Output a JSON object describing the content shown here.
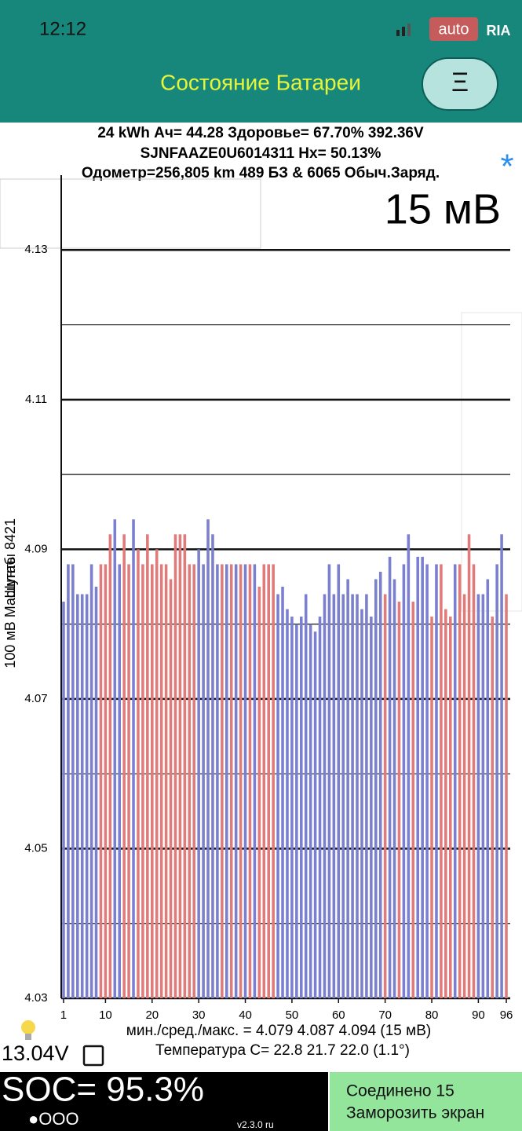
{
  "status_bar": {
    "time": "12:12",
    "logo_left": "auto",
    "logo_right": "RIA"
  },
  "header": {
    "title": "Состояние Батареи",
    "menu": "Ξ"
  },
  "info": {
    "line1": "24 kWh  Ач= 44.28  Здоровье= 67.70%   392.36V",
    "line2": "SJNFAAZE0U6014311   Hx= 50.13%",
    "line3": "Одометр=256,805 km 489 БЗ & 6065 Обыч.Заряд.",
    "star": "*",
    "scale": "15 мВ"
  },
  "chart_data": {
    "type": "bar",
    "y_label": "100 мВ Масштаб",
    "y_label2": "Шунты 8421",
    "x": [
      1,
      2,
      3,
      4,
      5,
      6,
      7,
      8,
      9,
      10,
      11,
      12,
      13,
      14,
      15,
      16,
      17,
      18,
      19,
      20,
      21,
      22,
      23,
      24,
      25,
      26,
      27,
      28,
      29,
      30,
      31,
      32,
      33,
      34,
      35,
      36,
      37,
      38,
      39,
      40,
      41,
      42,
      43,
      44,
      45,
      46,
      47,
      48,
      49,
      50,
      51,
      52,
      53,
      54,
      55,
      56,
      57,
      58,
      59,
      60,
      61,
      62,
      63,
      64,
      65,
      66,
      67,
      68,
      69,
      70,
      71,
      72,
      73,
      74,
      75,
      76,
      77,
      78,
      79,
      80,
      81,
      82,
      83,
      84,
      85,
      86,
      87,
      88,
      89,
      90,
      91,
      92,
      93,
      94,
      95,
      96
    ],
    "values": [
      4.083,
      4.088,
      4.088,
      4.084,
      4.084,
      4.084,
      4.088,
      4.085,
      4.088,
      4.088,
      4.092,
      4.094,
      4.088,
      4.092,
      4.088,
      4.094,
      4.09,
      4.088,
      4.092,
      4.088,
      4.09,
      4.088,
      4.088,
      4.086,
      4.092,
      4.092,
      4.092,
      4.088,
      4.088,
      4.09,
      4.088,
      4.094,
      4.092,
      4.088,
      4.088,
      4.088,
      4.088,
      4.088,
      4.088,
      4.088,
      4.088,
      4.088,
      4.085,
      4.088,
      4.088,
      4.088,
      4.084,
      4.085,
      4.082,
      4.081,
      4.08,
      4.081,
      4.084,
      4.08,
      4.079,
      4.081,
      4.084,
      4.088,
      4.084,
      4.088,
      4.084,
      4.086,
      4.084,
      4.084,
      4.082,
      4.084,
      4.081,
      4.086,
      4.087,
      4.084,
      4.089,
      4.086,
      4.083,
      4.088,
      4.092,
      4.083,
      4.089,
      4.089,
      4.088,
      4.081,
      4.088,
      4.088,
      4.082,
      4.081,
      4.088,
      4.088,
      4.084,
      4.092,
      4.088,
      4.084,
      4.084,
      4.086,
      4.081,
      4.088,
      4.092,
      4.084
    ],
    "colors": [
      "#7b7fcf",
      "#7b7fcf",
      "#7b7fcf",
      "#7b7fcf",
      "#7b7fcf",
      "#7b7fcf",
      "#7b7fcf",
      "#7b7fcf",
      "#e07b7b",
      "#e07b7b",
      "#e07b7b",
      "#7b7fcf",
      "#7b7fcf",
      "#e07b7b",
      "#e07b7b",
      "#7b7fcf",
      "#e07b7b",
      "#e07b7b",
      "#e07b7b",
      "#e07b7b",
      "#e07b7b",
      "#e07b7b",
      "#e07b7b",
      "#e07b7b",
      "#e07b7b",
      "#e07b7b",
      "#e07b7b",
      "#e07b7b",
      "#e07b7b",
      "#7b7fcf",
      "#7b7fcf",
      "#7b7fcf",
      "#7b7fcf",
      "#7b7fcf",
      "#e07b7b",
      "#7b7fcf",
      "#e07b7b",
      "#7b7fcf",
      "#e07b7b",
      "#7b7fcf",
      "#e07b7b",
      "#7b7fcf",
      "#e07b7b",
      "#e07b7b",
      "#e07b7b",
      "#e07b7b",
      "#7b7fcf",
      "#7b7fcf",
      "#7b7fcf",
      "#7b7fcf",
      "#7b7fcf",
      "#7b7fcf",
      "#7b7fcf",
      "#7b7fcf",
      "#7b7fcf",
      "#7b7fcf",
      "#7b7fcf",
      "#7b7fcf",
      "#7b7fcf",
      "#7b7fcf",
      "#7b7fcf",
      "#7b7fcf",
      "#7b7fcf",
      "#7b7fcf",
      "#7b7fcf",
      "#7b7fcf",
      "#7b7fcf",
      "#7b7fcf",
      "#7b7fcf",
      "#e07b7b",
      "#7b7fcf",
      "#7b7fcf",
      "#e07b7b",
      "#7b7fcf",
      "#7b7fcf",
      "#e07b7b",
      "#7b7fcf",
      "#7b7fcf",
      "#7b7fcf",
      "#e07b7b",
      "#7b7fcf",
      "#e07b7b",
      "#e07b7b",
      "#e07b7b",
      "#7b7fcf",
      "#e07b7b",
      "#e07b7b",
      "#e07b7b",
      "#e07b7b",
      "#7b7fcf",
      "#7b7fcf",
      "#7b7fcf",
      "#e07b7b",
      "#7b7fcf",
      "#7b7fcf",
      "#e07b7b"
    ],
    "xlim": [
      0.5,
      96.5
    ],
    "xticks": [
      1,
      10,
      20,
      30,
      40,
      50,
      60,
      70,
      80,
      90,
      96
    ],
    "ylim": [
      4.03,
      4.14
    ],
    "yticks": [
      4.03,
      4.05,
      4.07,
      4.09,
      4.11,
      4.13
    ],
    "minor_yticks": [
      4.04,
      4.06,
      4.08,
      4.1,
      4.12
    ],
    "grid": true
  },
  "footer": {
    "stats": "мин./сред./макс. = 4.079 4.087 4.094  (15 мВ)",
    "temps": "Температура С= 22.8  21.7  22.0  (1.1°)",
    "voltage": "13.04V",
    "soc": "SOC= 95.3%",
    "dots": "●OOO",
    "version": "v2.3.0 ru",
    "connected": "Соединено 15",
    "freeze": "Заморозить экран"
  }
}
